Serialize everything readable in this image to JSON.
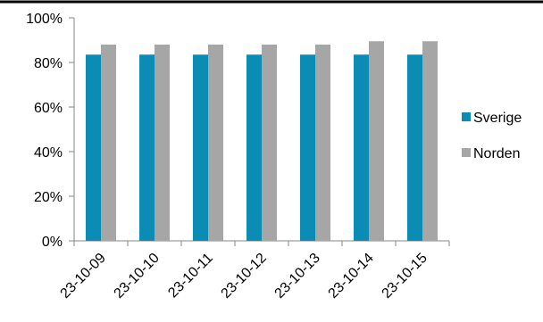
{
  "chart_data": {
    "type": "bar",
    "categories": [
      "23-10-09",
      "23-10-10",
      "23-10-11",
      "23-10-12",
      "23-10-13",
      "23-10-14",
      "23-10-15"
    ],
    "series": [
      {
        "name": "Sverige",
        "color": "#0a8cb4",
        "values": [
          83.5,
          83.5,
          83.5,
          83.5,
          83.5,
          83.5,
          83.5
        ]
      },
      {
        "name": "Norden",
        "color": "#a6a6a6",
        "values": [
          88,
          88,
          88,
          88,
          88,
          89.5,
          89.5
        ]
      }
    ],
    "ylim": [
      0,
      100
    ],
    "y_ticks": [
      "0%",
      "20%",
      "40%",
      "60%",
      "80%",
      "100%"
    ],
    "y_tick_values": [
      0,
      20,
      40,
      60,
      80,
      100
    ],
    "grid": false,
    "legend_position": "right",
    "title": "",
    "xlabel": "",
    "ylabel": "",
    "top_rule_color": "#000000"
  }
}
